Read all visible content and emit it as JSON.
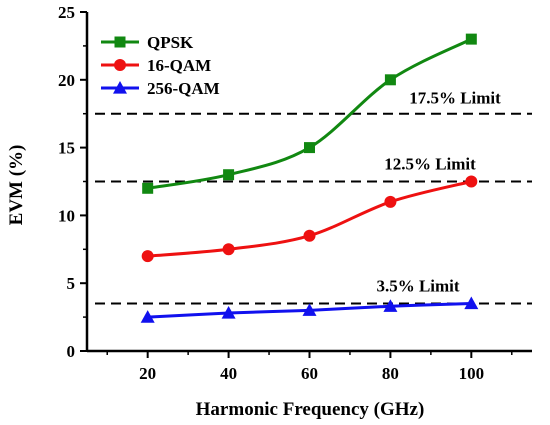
{
  "chart_data": {
    "type": "line",
    "xlabel": "Harmonic Frequency (GHz)",
    "ylabel": "EVM (%)",
    "xlim": [
      5,
      115
    ],
    "ylim": [
      0,
      25
    ],
    "xticks": [
      20,
      40,
      60,
      80,
      100
    ],
    "yticks": [
      0,
      5,
      10,
      15,
      20,
      25
    ],
    "x": [
      20,
      40,
      60,
      80,
      100
    ],
    "series": [
      {
        "name": "QPSK",
        "color": "#118811",
        "marker": "square",
        "values": [
          12,
          13,
          15,
          20,
          23
        ]
      },
      {
        "name": "16-QAM",
        "color": "#ee1111",
        "marker": "circle",
        "values": [
          7,
          7.5,
          8.5,
          11,
          12.5
        ]
      },
      {
        "name": "256-QAM",
        "color": "#1111ee",
        "marker": "triangle",
        "values": [
          2.5,
          2.8,
          3.0,
          3.3,
          3.5
        ]
      }
    ],
    "limits": [
      {
        "label": "17.5% Limit",
        "value": 17.5
      },
      {
        "label": "12.5% Limit",
        "value": 12.5
      },
      {
        "label": "3.5% Limit",
        "value": 3.5
      }
    ],
    "legend_position": "top-left",
    "grid": false
  }
}
